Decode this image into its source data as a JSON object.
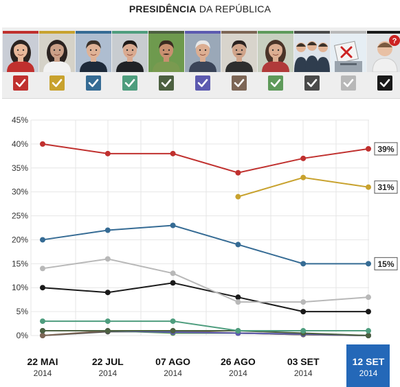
{
  "header": {
    "title_bold": "PRESIDÊNCIA",
    "title_rest": "DA REPÚBLICA"
  },
  "candidates": [
    {
      "color": "#c0302e",
      "checked": true,
      "avatar": "woman-short-hair-icon",
      "bg": "#c9cdd6",
      "skin": "#e8b89a",
      "hair": "#2b2320",
      "shirt": "#c0302e"
    },
    {
      "color": "#c8a22e",
      "checked": true,
      "avatar": "woman-long-hair-icon",
      "bg": "#d5d2c8",
      "skin": "#caa088",
      "hair": "#2a2220",
      "shirt": "#f2f2f2"
    },
    {
      "color": "#356b94",
      "checked": true,
      "avatar": "man-suit-icon",
      "bg": "#aebdd0",
      "skin": "#dfb296",
      "hair": "#3a3028",
      "shirt": "#1e2a3a"
    },
    {
      "color": "#4e9d7e",
      "checked": true,
      "avatar": "man-suit-icon",
      "bg": "#c8ccd0",
      "skin": "#d9aa90",
      "hair": "#1e1a18",
      "shirt": "#202226"
    },
    {
      "color": "#4c6040",
      "checked": true,
      "avatar": "man-bearded-icon",
      "bg": "#6e9a4e",
      "skin": "#c89070",
      "hair": "#3a2a20",
      "shirt": "#7a9a50"
    },
    {
      "color": "#5c5ab0",
      "checked": true,
      "avatar": "man-older-icon",
      "bg": "#9aa8b8",
      "skin": "#dcae92",
      "hair": "#e8e8e8",
      "shirt": "#3a4458"
    },
    {
      "color": "#7d6656",
      "checked": true,
      "avatar": "man-mustache-icon",
      "bg": "#d8d4cc",
      "skin": "#d0a48a",
      "hair": "#2a2220",
      "shirt": "#2e2e2e"
    },
    {
      "color": "#5e9a5a",
      "checked": true,
      "avatar": "woman-curly-hair-icon",
      "bg": "#c8d0c0",
      "skin": "#dcae92",
      "hair": "#4a3428",
      "shirt": "#b03a3a"
    },
    {
      "color": "#4a4a4a",
      "checked": true,
      "avatar": "group-of-people-icon",
      "bg": "#dde3ea",
      "skin": "#e2b496",
      "hair": "#3a3028",
      "shirt": "#2f3d4e"
    },
    {
      "color": "#b8b8b8",
      "checked": true,
      "avatar": "ballot-box-icon",
      "bg": "#e6eef4",
      "skin": "#e0e0e0",
      "hair": "#333333",
      "shirt": "#cc2222"
    },
    {
      "color": "#1a1a1a",
      "checked": true,
      "avatar": "undecided-person-icon",
      "bg": "#e2e4e6",
      "skin": "#e8c0a4",
      "hair": "#7a5a40",
      "shirt": "#f0f0f0"
    }
  ],
  "chart_data": {
    "type": "line",
    "x": [
      {
        "label": "22 MAI",
        "year": "2014"
      },
      {
        "label": "22 JUL",
        "year": "2014"
      },
      {
        "label": "07 AGO",
        "year": "2014"
      },
      {
        "label": "26 AGO",
        "year": "2014"
      },
      {
        "label": "03 SET",
        "year": "2014"
      },
      {
        "label": "12 SET",
        "year": "2014"
      }
    ],
    "selected_index": 5,
    "ylim": [
      0,
      45
    ],
    "yticks": [
      "0%",
      "5%",
      "10%",
      "15%",
      "20%",
      "25%",
      "30%",
      "35%",
      "40%",
      "45%"
    ],
    "grid": true,
    "series": [
      {
        "color": "#c0302e",
        "values": [
          40,
          38,
          38,
          34,
          37,
          39
        ],
        "end_label": "39%"
      },
      {
        "color": "#c8a22e",
        "values": [
          null,
          null,
          null,
          29,
          33,
          31
        ],
        "end_label": "31%"
      },
      {
        "color": "#356b94",
        "values": [
          20,
          22,
          23,
          19,
          15,
          15
        ],
        "end_label": "15%"
      },
      {
        "color": "#b8b8b8",
        "values": [
          14,
          16,
          13,
          7,
          7,
          8
        ]
      },
      {
        "color": "#1a1a1a",
        "values": [
          10,
          9,
          11,
          8,
          5,
          5
        ]
      },
      {
        "color": "#4e9d7e",
        "values": [
          3,
          3,
          3,
          1,
          1,
          1
        ]
      },
      {
        "color": "#4c6040",
        "values": [
          1,
          1,
          1,
          1,
          0.5,
          0
        ]
      },
      {
        "color": "#5c5ab0",
        "values": [
          1,
          1,
          0.7,
          0.5,
          0.3,
          0
        ]
      },
      {
        "color": "#7d6656",
        "values": [
          0,
          1,
          1,
          0.5,
          0.2,
          0
        ]
      },
      {
        "color": "#5e9a5a",
        "values": [
          1,
          1,
          0.5,
          0.5,
          0.3,
          0
        ]
      },
      {
        "color": "#4a4a4a",
        "values": [
          0,
          0.8,
          0.8,
          0.5,
          0.2,
          0
        ]
      }
    ],
    "selected_color": "#2468b8"
  }
}
